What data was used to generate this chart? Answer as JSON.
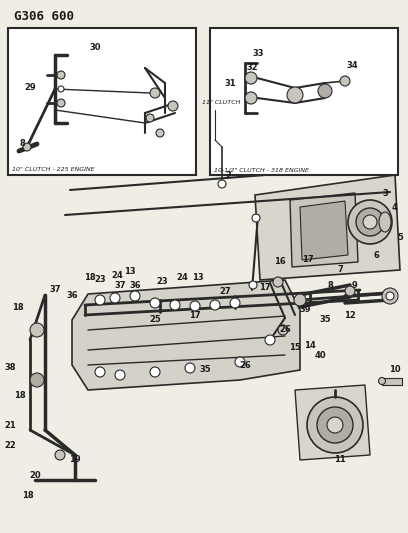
{
  "title": "G306 600",
  "bg_color": "#f0ede4",
  "white": "#ffffff",
  "lc": "#2a2a2a",
  "tc": "#1a1a1a",
  "gray1": "#c8c5bc",
  "gray2": "#b0ada4",
  "gray3": "#d8d5cc",
  "box1_label": "10\" CLUTCH - 225 ENGINE",
  "box2_label": "10-1/2\" CLUTCH - 318 ENGINE",
  "clutch11_label": "11\" CLUTCH"
}
